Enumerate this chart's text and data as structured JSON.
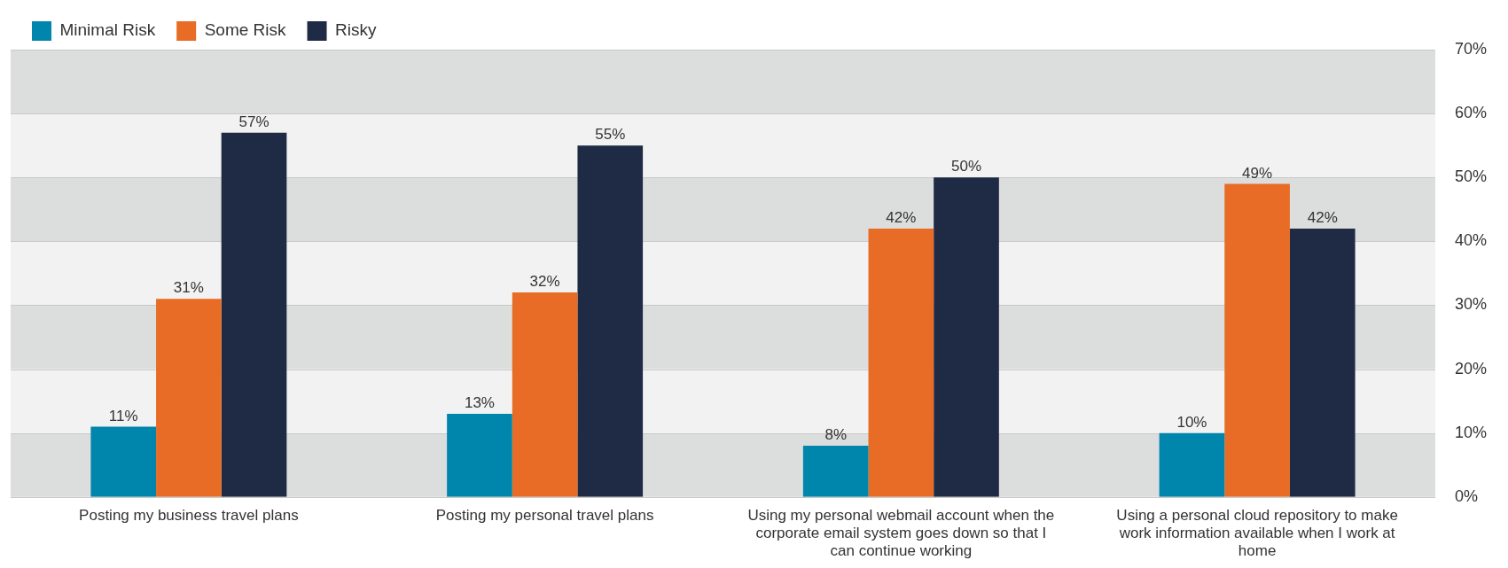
{
  "chart_data": {
    "type": "bar",
    "categories": [
      "Posting my business travel plans",
      "Posting my personal travel plans",
      "Using my personal webmail account when the corporate email system goes down so that I can continue working",
      "Using a personal cloud repository to make work information available when I work at home"
    ],
    "series": [
      {
        "name": "Minimal Risk",
        "color": "#0086ad",
        "values": [
          11,
          13,
          8,
          10
        ],
        "value_labels": [
          "11%",
          "13%",
          "8%",
          "10%"
        ]
      },
      {
        "name": "Some Risk",
        "color": "#e86c25",
        "values": [
          31,
          32,
          42,
          49
        ],
        "value_labels": [
          "31%",
          "32%",
          "42%",
          "49%"
        ]
      },
      {
        "name": "Risky",
        "color": "#1f2a44",
        "values": [
          57,
          55,
          50,
          42
        ],
        "value_labels": [
          "57%",
          "55%",
          "50%",
          "42%"
        ]
      }
    ],
    "ylim": [
      0,
      70
    ],
    "yticks": [
      {
        "value": 0,
        "label": "0%"
      },
      {
        "value": 10,
        "label": "10%"
      },
      {
        "value": 20,
        "label": "20%"
      },
      {
        "value": 30,
        "label": "30%"
      },
      {
        "value": 40,
        "label": "40%"
      },
      {
        "value": 50,
        "label": "50%"
      },
      {
        "value": 60,
        "label": "60%"
      },
      {
        "value": 70,
        "label": "70%"
      }
    ],
    "grid": true,
    "legend": "top left"
  }
}
